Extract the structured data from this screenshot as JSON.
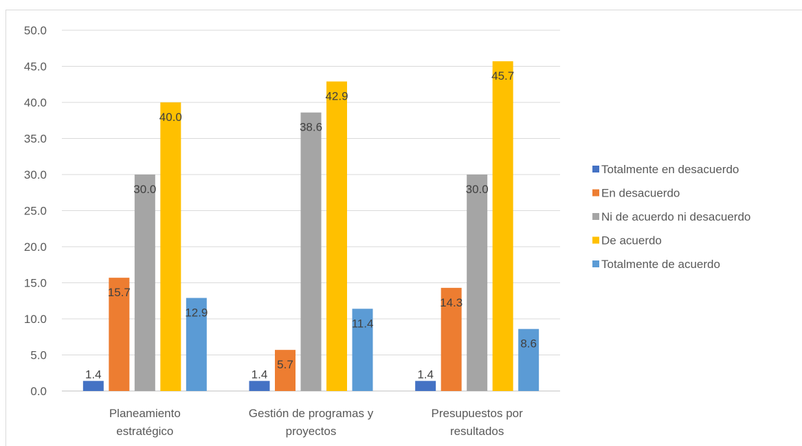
{
  "chart_data": {
    "type": "bar",
    "title": "",
    "xlabel": "",
    "ylabel": "",
    "ylim": [
      0,
      50
    ],
    "y_ticks": [
      "0.0",
      "5.0",
      "10.0",
      "15.0",
      "20.0",
      "25.0",
      "30.0",
      "35.0",
      "40.0",
      "45.0",
      "50.0"
    ],
    "grid": true,
    "legend_position": "right",
    "categories": [
      [
        "Planeamiento",
        "estratégico"
      ],
      [
        "Gestión de programas y",
        "proyectos"
      ],
      [
        "Presupuestos por",
        "resultados"
      ]
    ],
    "series": [
      {
        "name": "Totalmente en desacuerdo",
        "color": "#4472c4",
        "values": [
          1.4,
          1.4,
          1.4
        ],
        "labels": [
          "1.4",
          "1.4",
          "1.4"
        ]
      },
      {
        "name": "En desacuerdo",
        "color": "#ed7d31",
        "values": [
          15.7,
          5.7,
          14.3
        ],
        "labels": [
          "15.7",
          "5.7",
          "14.3"
        ]
      },
      {
        "name": "Ni de acuerdo ni desacuerdo",
        "color": "#a5a5a5",
        "values": [
          30.0,
          38.6,
          30.0
        ],
        "labels": [
          "30.0",
          "38.6",
          "30.0"
        ]
      },
      {
        "name": "De acuerdo",
        "color": "#ffc000",
        "values": [
          40.0,
          42.9,
          45.7
        ],
        "labels": [
          "40.0",
          "42.9",
          "45.7"
        ]
      },
      {
        "name": "Totalmente de acuerdo",
        "color": "#5b9bd5",
        "values": [
          12.9,
          11.4,
          8.6
        ],
        "labels": [
          "12.9",
          "11.4",
          "8.6"
        ]
      }
    ]
  }
}
